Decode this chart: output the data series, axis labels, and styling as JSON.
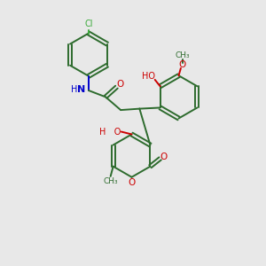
{
  "background_color": "#e8e8e8",
  "bond_color": "#2d6b2d",
  "O_color": "#cc0000",
  "N_color": "#0000cc",
  "Cl_color": "#3aaa3a",
  "lw": 1.4,
  "fs": 7.0,
  "xlim": [
    0,
    10
  ],
  "ylim": [
    0,
    10
  ],
  "ring_r": 0.82
}
